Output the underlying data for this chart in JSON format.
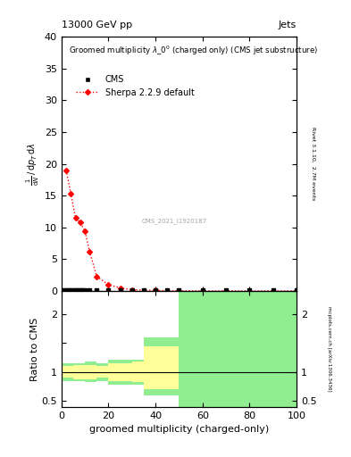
{
  "title_top": "13000 GeV pp",
  "title_right": "Jets",
  "plot_title": "Groomed multiplicity $\\lambda\\_0^0$ (charged only) (CMS jet substructure)",
  "xlabel": "groomed multiplicity (charged-only)",
  "ylabel_main_parts": [
    "$\\mathrm{d}^2N$",
    "$\\mathrm{d}\\,p_T\\,\\mathrm{d}\\,\\lambda$"
  ],
  "ylabel_ratio": "Ratio to CMS",
  "ylabel_right_main": "Rivet 3.1.10,  2.7M events",
  "ylabel_right_ratio": "mcplots.cern.ch [arXiv:1306.3436]",
  "watermark": "CMS_2021_I1920187",
  "sherpa_x": [
    2,
    4,
    6,
    8,
    10,
    12,
    15,
    20,
    25,
    30,
    40,
    50,
    60,
    70,
    100
  ],
  "sherpa_y": [
    19.0,
    15.3,
    11.5,
    10.8,
    9.4,
    6.2,
    2.3,
    1.0,
    0.5,
    0.2,
    0.1,
    0.05,
    0.02,
    0.02,
    0.02
  ],
  "cms_x": [
    1,
    2,
    3,
    4,
    5,
    6,
    7,
    8,
    9,
    10,
    12,
    15,
    20,
    25,
    30,
    35,
    40,
    45,
    50,
    60,
    70,
    80,
    90,
    100
  ],
  "cms_y_approx": 0.15,
  "ylim_main": [
    0,
    40
  ],
  "xlim": [
    0,
    100
  ],
  "ylim_ratio": [
    0.4,
    2.4
  ],
  "ratio_green_regions": [
    {
      "xlo": 0,
      "xhi": 10,
      "ylo": 0.85,
      "yhi": 1.15
    },
    {
      "xlo": 10,
      "xhi": 15,
      "ylo": 0.82,
      "yhi": 1.18
    },
    {
      "xlo": 15,
      "xhi": 20,
      "ylo": 0.85,
      "yhi": 1.15
    },
    {
      "xlo": 20,
      "xhi": 35,
      "ylo": 0.78,
      "yhi": 1.22
    },
    {
      "xlo": 35,
      "xhi": 50,
      "ylo": 0.6,
      "yhi": 1.6
    },
    {
      "xlo": 50,
      "xhi": 100,
      "ylo": 0.4,
      "yhi": 2.4
    }
  ],
  "ratio_yellow_regions": [
    {
      "xlo": 0,
      "xhi": 5,
      "ylo": 0.9,
      "yhi": 1.1
    },
    {
      "xlo": 5,
      "xhi": 10,
      "ylo": 0.88,
      "yhi": 1.12
    },
    {
      "xlo": 10,
      "xhi": 15,
      "ylo": 0.88,
      "yhi": 1.12
    },
    {
      "xlo": 15,
      "xhi": 20,
      "ylo": 0.9,
      "yhi": 1.1
    },
    {
      "xlo": 20,
      "xhi": 30,
      "ylo": 0.85,
      "yhi": 1.15
    },
    {
      "xlo": 30,
      "xhi": 35,
      "ylo": 0.82,
      "yhi": 1.18
    },
    {
      "xlo": 35,
      "xhi": 50,
      "ylo": 0.7,
      "yhi": 1.45
    }
  ],
  "cms_color": "black",
  "sherpa_color": "red",
  "green_color": "#90EE90",
  "yellow_color": "#FFFF99",
  "tick_label_size": 8,
  "axis_label_size": 8,
  "legend_size": 7
}
